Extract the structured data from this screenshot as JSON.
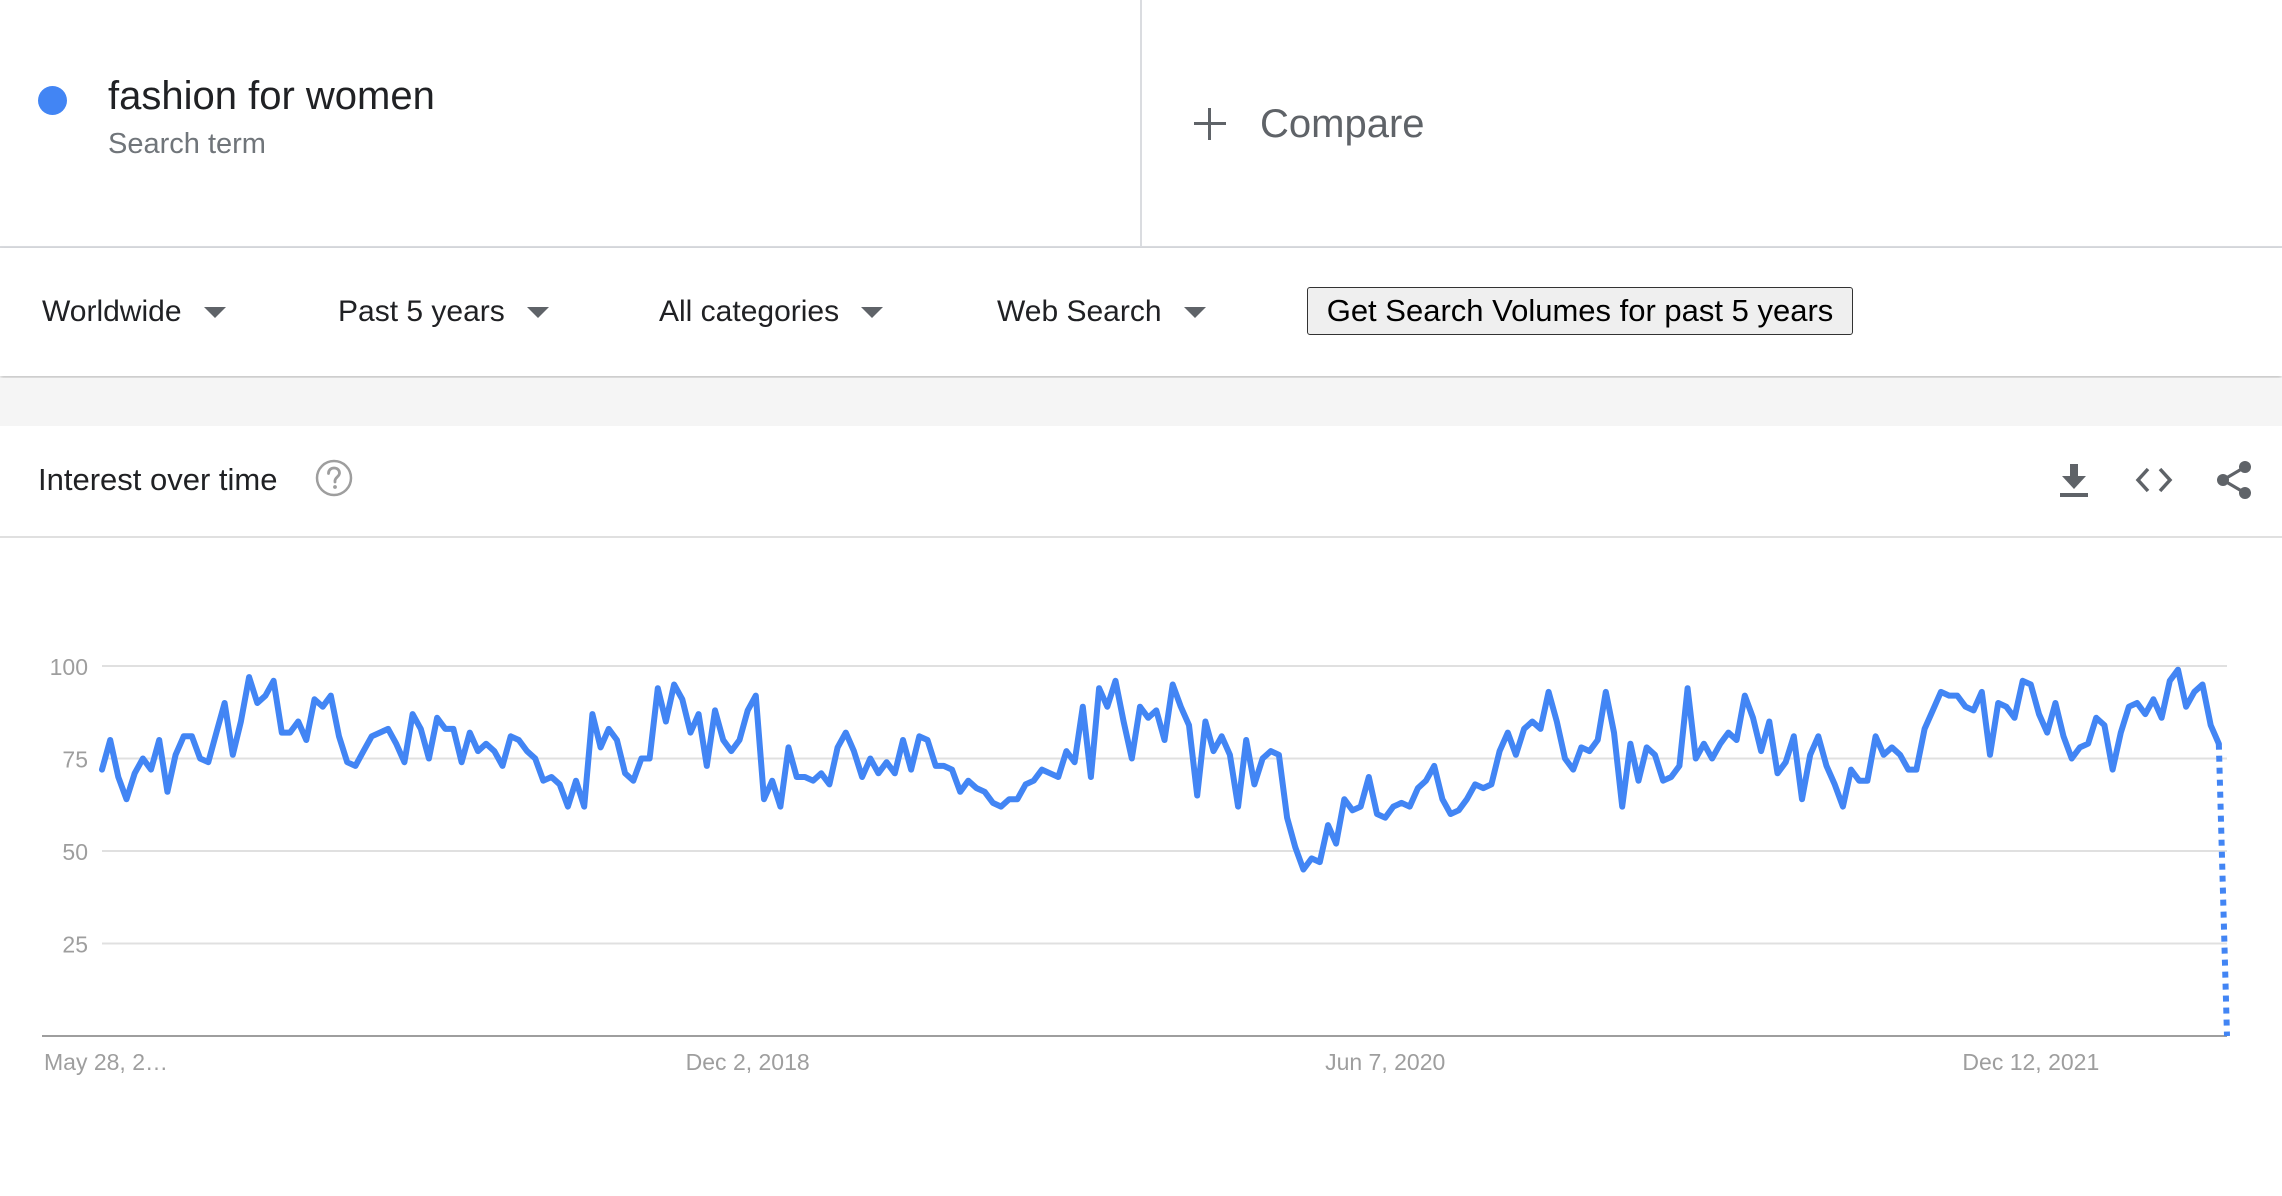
{
  "search_term": {
    "name": "fashion for women",
    "type_label": "Search term",
    "color": "#4285f4"
  },
  "compare": {
    "label": "Compare",
    "icon": "plus-icon"
  },
  "filters": {
    "region": "Worldwide",
    "time_range": "Past 5 years",
    "category": "All categories",
    "search_type": "Web Search",
    "volume_button": "Get Search Volumes for past 5 years"
  },
  "panel": {
    "title": "Interest over time",
    "icons": [
      "help-icon",
      "download-icon",
      "embed-icon",
      "share-icon"
    ]
  },
  "chart_data": {
    "type": "line",
    "title": "",
    "xlabel": "",
    "ylabel": "",
    "ylim": [
      0,
      100
    ],
    "yticks": [
      25,
      50,
      75,
      100
    ],
    "grid": true,
    "x_start_label": "May 28, 2…",
    "x_tick_labels": [
      {
        "label": "Dec 2, 2018",
        "week_index": 79
      },
      {
        "label": "Jun 7, 2020",
        "week_index": 157
      },
      {
        "label": "Dec 12, 2021",
        "week_index": 236
      }
    ],
    "series": [
      {
        "name": "fashion for women",
        "color": "#4285f4",
        "partial_last_point": true,
        "values": [
          72,
          80,
          70,
          64,
          71,
          75,
          72,
          80,
          66,
          76,
          81,
          81,
          75,
          74,
          82,
          90,
          76,
          85,
          97,
          90,
          92,
          96,
          82,
          82,
          85,
          80,
          91,
          89,
          92,
          81,
          74,
          73,
          77,
          81,
          82,
          83,
          79,
          74,
          87,
          83,
          75,
          86,
          83,
          83,
          74,
          82,
          77,
          79,
          77,
          73,
          81,
          80,
          77,
          75,
          69,
          70,
          68,
          62,
          69,
          62,
          87,
          78,
          83,
          80,
          71,
          69,
          75,
          75,
          94,
          85,
          95,
          91,
          82,
          87,
          73,
          88,
          80,
          77,
          80,
          88,
          92,
          64,
          69,
          62,
          78,
          70,
          70,
          69,
          71,
          68,
          78,
          82,
          77,
          70,
          75,
          71,
          74,
          71,
          80,
          72,
          81,
          80,
          73,
          73,
          72,
          66,
          69,
          67,
          66,
          63,
          62,
          64,
          64,
          68,
          69,
          72,
          71,
          70,
          77,
          74,
          89,
          70,
          94,
          89,
          96,
          85,
          75,
          89,
          86,
          88,
          80,
          95,
          89,
          84,
          65,
          85,
          77,
          81,
          76,
          62,
          80,
          68,
          75,
          77,
          76,
          59,
          51,
          45,
          48,
          47,
          57,
          52,
          64,
          61,
          62,
          70,
          60,
          59,
          62,
          63,
          62,
          67,
          69,
          73,
          64,
          60,
          61,
          64,
          68,
          67,
          68,
          77,
          82,
          76,
          83,
          85,
          83,
          93,
          85,
          75,
          72,
          78,
          77,
          80,
          93,
          82,
          62,
          79,
          69,
          78,
          76,
          69,
          70,
          73,
          94,
          75,
          79,
          75,
          79,
          82,
          80,
          92,
          86,
          77,
          85,
          71,
          74,
          81,
          64,
          76,
          81,
          73,
          68,
          62,
          72,
          69,
          69,
          81,
          76,
          78,
          76,
          72,
          72,
          83,
          88,
          93,
          92,
          92,
          89,
          88,
          93,
          76,
          90,
          89,
          86,
          96,
          95,
          87,
          82,
          90,
          81,
          75,
          78,
          79,
          86,
          84,
          72,
          82,
          89,
          90,
          87,
          91,
          86,
          96,
          99,
          89,
          93,
          95,
          84,
          79,
          0
        ]
      }
    ]
  }
}
